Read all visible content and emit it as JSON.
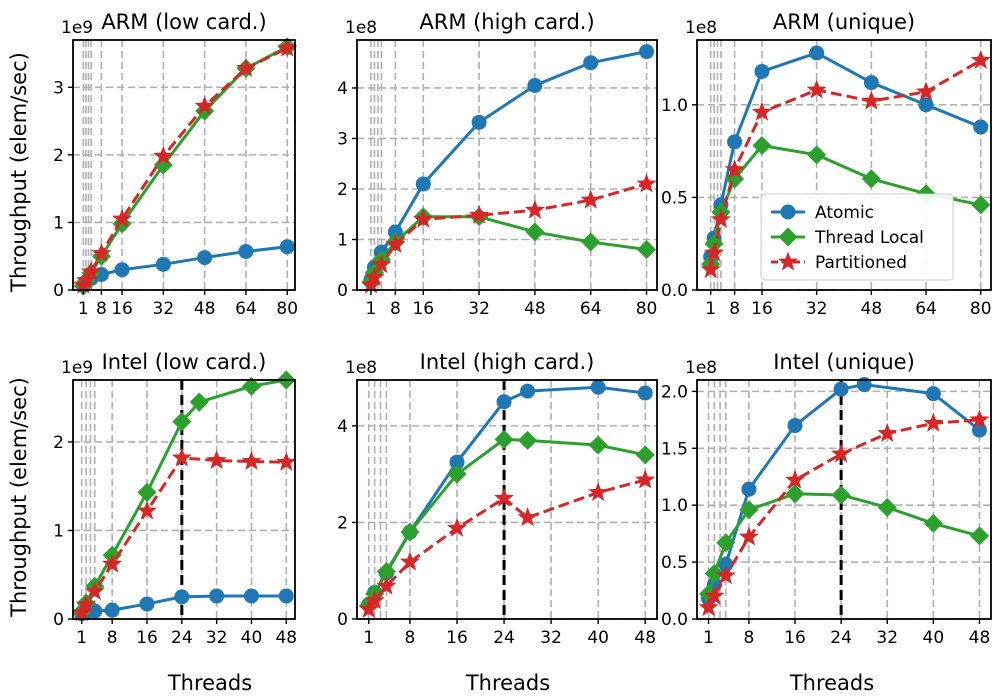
{
  "figure": {
    "ylabel": "Throughput (elem/sec)",
    "xlabel": "Threads"
  },
  "legend": {
    "position": "top-right panel, lower-right",
    "entries": [
      {
        "label": "Atomic",
        "color": "#1f77b4",
        "marker": "circle",
        "dash": "solid"
      },
      {
        "label": "Thread Local",
        "color": "#2ca02c",
        "marker": "diamond",
        "dash": "solid"
      },
      {
        "label": "Partitioned",
        "color": "#d62728",
        "marker": "star",
        "dash": "dashed"
      }
    ]
  },
  "chart_data": [
    {
      "type": "line",
      "title": "ARM (low card.)",
      "scale_label": "1e9",
      "xlabel": "",
      "ylabel": "Throughput (elem/sec)",
      "xlim": [
        -3,
        83
      ],
      "ylim": [
        0,
        3.7
      ],
      "xticks": [
        1,
        8,
        16,
        32,
        48,
        64,
        80
      ],
      "xgrid": [
        1,
        2,
        3,
        4,
        8,
        16,
        32,
        48,
        64,
        80
      ],
      "yticks": [
        0,
        1,
        2,
        3
      ],
      "ytick_labels": [
        "0",
        "1",
        "2",
        "3"
      ],
      "vline": null,
      "x": [
        1,
        2,
        4,
        8,
        16,
        32,
        48,
        64,
        80
      ],
      "series": [
        {
          "name": "Atomic",
          "values": [
            0.07,
            0.12,
            0.17,
            0.23,
            0.3,
            0.38,
            0.48,
            0.57,
            0.64
          ]
        },
        {
          "name": "Thread Local",
          "values": [
            0.06,
            0.12,
            0.25,
            0.5,
            0.98,
            1.85,
            2.65,
            3.28,
            3.6
          ]
        },
        {
          "name": "Partitioned",
          "values": [
            0.07,
            0.14,
            0.27,
            0.54,
            1.05,
            1.98,
            2.72,
            3.28,
            3.58
          ]
        }
      ]
    },
    {
      "type": "line",
      "title": "ARM (high card.)",
      "scale_label": "1e8",
      "xlabel": "",
      "ylabel": "",
      "xlim": [
        -3,
        83
      ],
      "ylim": [
        0,
        4.95
      ],
      "xticks": [
        1,
        8,
        16,
        32,
        48,
        64,
        80
      ],
      "xgrid": [
        1,
        2,
        3,
        4,
        8,
        16,
        32,
        48,
        64,
        80
      ],
      "yticks": [
        0,
        1,
        2,
        3,
        4
      ],
      "ytick_labels": [
        "0",
        "1",
        "2",
        "3",
        "4"
      ],
      "vline": null,
      "x": [
        1,
        2,
        4,
        8,
        16,
        32,
        48,
        64,
        80
      ],
      "series": [
        {
          "name": "Atomic",
          "values": [
            0.2,
            0.45,
            0.75,
            1.15,
            2.1,
            3.32,
            4.05,
            4.5,
            4.72
          ]
        },
        {
          "name": "Thread Local",
          "values": [
            0.15,
            0.35,
            0.6,
            0.95,
            1.45,
            1.45,
            1.15,
            0.95,
            0.8
          ]
        },
        {
          "name": "Partitioned",
          "values": [
            0.1,
            0.25,
            0.5,
            0.9,
            1.4,
            1.48,
            1.58,
            1.78,
            2.1
          ]
        }
      ]
    },
    {
      "type": "line",
      "title": "ARM (unique)",
      "scale_label": "1e8",
      "xlabel": "",
      "ylabel": "",
      "xlim": [
        -3,
        83
      ],
      "ylim": [
        0,
        1.35
      ],
      "xticks": [
        1,
        8,
        16,
        32,
        48,
        64,
        80
      ],
      "xgrid": [
        1,
        2,
        3,
        4,
        8,
        16,
        32,
        48,
        64,
        80
      ],
      "yticks": [
        0,
        0.5,
        1.0
      ],
      "ytick_labels": [
        "0.0",
        "0.5",
        "1.0"
      ],
      "vline": null,
      "x": [
        1,
        2,
        4,
        8,
        16,
        32,
        48,
        64,
        80
      ],
      "series": [
        {
          "name": "Atomic",
          "values": [
            0.18,
            0.28,
            0.46,
            0.8,
            1.18,
            1.28,
            1.12,
            1.0,
            0.88
          ]
        },
        {
          "name": "Thread Local",
          "values": [
            0.14,
            0.25,
            0.42,
            0.6,
            0.78,
            0.73,
            0.6,
            0.52,
            0.46
          ]
        },
        {
          "name": "Partitioned",
          "values": [
            0.11,
            0.2,
            0.38,
            0.65,
            0.96,
            1.08,
            1.02,
            1.07,
            1.24
          ]
        }
      ]
    },
    {
      "type": "line",
      "title": "Intel (low card.)",
      "scale_label": "1e9",
      "xlabel": "Threads",
      "ylabel": "Throughput (elem/sec)",
      "xlim": [
        -1,
        50
      ],
      "ylim": [
        0,
        2.7
      ],
      "xticks": [
        1,
        8,
        16,
        24,
        32,
        40,
        48
      ],
      "xgrid": [
        1,
        2,
        3,
        4,
        8,
        16,
        24,
        32,
        40,
        48
      ],
      "yticks": [
        0,
        1,
        2
      ],
      "ytick_labels": [
        "0",
        "1",
        "2"
      ],
      "vline": 24,
      "x": [
        1,
        2,
        4,
        8,
        16,
        24,
        28,
        40,
        48
      ],
      "series": [
        {
          "name": "Atomic",
          "x": [
            1,
            2,
            4,
            8,
            16,
            24,
            32,
            40,
            48
          ],
          "values": [
            0.06,
            0.08,
            0.09,
            0.1,
            0.17,
            0.25,
            0.26,
            0.26,
            0.26
          ]
        },
        {
          "name": "Thread Local",
          "x": [
            1,
            2,
            4,
            8,
            16,
            24,
            28,
            40,
            48
          ],
          "values": [
            0.08,
            0.18,
            0.37,
            0.72,
            1.43,
            2.23,
            2.45,
            2.63,
            2.7
          ]
        },
        {
          "name": "Partitioned",
          "x": [
            1,
            2,
            4,
            8,
            16,
            24,
            32,
            40,
            48
          ],
          "values": [
            0.07,
            0.16,
            0.31,
            0.62,
            1.22,
            1.82,
            1.79,
            1.78,
            1.77
          ]
        }
      ]
    },
    {
      "type": "line",
      "title": "Intel (high card.)",
      "scale_label": "1e8",
      "xlabel": "Threads",
      "ylabel": "",
      "xlim": [
        -1,
        50
      ],
      "ylim": [
        0,
        4.95
      ],
      "xticks": [
        1,
        8,
        16,
        24,
        32,
        40,
        48
      ],
      "xgrid": [
        1,
        2,
        3,
        4,
        8,
        16,
        24,
        32,
        40,
        48
      ],
      "yticks": [
        0,
        2,
        4
      ],
      "ytick_labels": [
        "0",
        "2",
        "4"
      ],
      "vline": 24,
      "x": [
        1,
        2,
        4,
        8,
        16,
        24,
        32,
        40,
        48
      ],
      "series": [
        {
          "name": "Atomic",
          "x": [
            1,
            2,
            4,
            8,
            16,
            24,
            28,
            40,
            48
          ],
          "values": [
            0.3,
            0.55,
            0.95,
            1.8,
            3.25,
            4.5,
            4.72,
            4.8,
            4.68
          ]
        },
        {
          "name": "Thread Local",
          "x": [
            1,
            2,
            4,
            8,
            16,
            24,
            28,
            40,
            48
          ],
          "values": [
            0.28,
            0.52,
            0.98,
            1.8,
            3.0,
            3.72,
            3.7,
            3.6,
            3.4
          ]
        },
        {
          "name": "Partitioned",
          "x": [
            1,
            2,
            4,
            8,
            16,
            24,
            28,
            40,
            48
          ],
          "values": [
            0.2,
            0.38,
            0.68,
            1.18,
            1.88,
            2.5,
            2.1,
            2.62,
            2.88
          ]
        }
      ]
    },
    {
      "type": "line",
      "title": "Intel (unique)",
      "scale_label": "1e8",
      "xlabel": "Threads",
      "ylabel": "",
      "xlim": [
        -1,
        50
      ],
      "ylim": [
        0,
        2.1
      ],
      "xticks": [
        1,
        8,
        16,
        24,
        32,
        40,
        48
      ],
      "xgrid": [
        1,
        2,
        3,
        4,
        8,
        16,
        24,
        32,
        40,
        48
      ],
      "yticks": [
        0,
        0.5,
        1.0,
        1.5,
        2.0
      ],
      "ytick_labels": [
        "0.0",
        "0.5",
        "1.0",
        "1.5",
        "2.0"
      ],
      "vline": 24,
      "x": [
        1,
        2,
        4,
        8,
        16,
        24,
        32,
        40,
        48
      ],
      "series": [
        {
          "name": "Atomic",
          "x": [
            1,
            2,
            4,
            8,
            16,
            24,
            28,
            40,
            48
          ],
          "values": [
            0.18,
            0.3,
            0.48,
            1.14,
            1.7,
            2.02,
            2.06,
            1.98,
            1.66
          ]
        },
        {
          "name": "Thread Local",
          "x": [
            1,
            2,
            4,
            8,
            16,
            24,
            32,
            40,
            48
          ],
          "values": [
            0.22,
            0.4,
            0.67,
            0.96,
            1.1,
            1.09,
            0.98,
            0.84,
            0.73
          ]
        },
        {
          "name": "Partitioned",
          "x": [
            1,
            2,
            4,
            8,
            16,
            24,
            32,
            40,
            48
          ],
          "values": [
            0.1,
            0.2,
            0.38,
            0.72,
            1.22,
            1.45,
            1.63,
            1.72,
            1.75
          ]
        }
      ]
    }
  ]
}
